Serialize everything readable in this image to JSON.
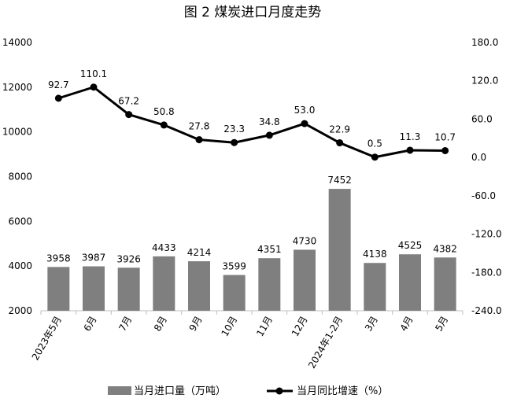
{
  "chart_data": {
    "type": "bar+line",
    "title": "图 2  煤炭进口月度走势",
    "categories": [
      "2023年5月",
      "6月",
      "7月",
      "8月",
      "9月",
      "10月",
      "11月",
      "12月",
      "2024年1-2月",
      "3月",
      "4月",
      "5月"
    ],
    "series": [
      {
        "name": "当月进口量（万吨）",
        "type": "bar",
        "axis": "left",
        "color": "#7f7f7f",
        "values": [
          3958,
          3987,
          3926,
          4433,
          4214,
          3599,
          4351,
          4730,
          7452,
          4138,
          4525,
          4382
        ]
      },
      {
        "name": "当月同比增速（%）",
        "type": "line",
        "axis": "right",
        "color": "#000000",
        "values": [
          92.7,
          110.1,
          67.2,
          50.8,
          27.8,
          23.3,
          34.8,
          53.0,
          22.9,
          0.5,
          11.3,
          10.7
        ]
      }
    ],
    "y_left": {
      "min": 2000,
      "max": 14000,
      "ticks": [
        "2000",
        "4000",
        "6000",
        "8000",
        "10000",
        "12000",
        "14000"
      ]
    },
    "y_right": {
      "min": -240,
      "max": 180,
      "ticks": [
        "-240.0",
        "-180.0",
        "-120.0",
        "-60.0",
        "0.0",
        "60.0",
        "120.0",
        "180.0"
      ]
    },
    "bar_labels": [
      "3958",
      "3987",
      "3926",
      "4433",
      "4214",
      "3599",
      "4351",
      "4730",
      "7452",
      "4138",
      "4525",
      "4382"
    ],
    "line_labels": [
      "92.7",
      "110.1",
      "67.2",
      "50.8",
      "27.8",
      "23.3",
      "34.8",
      "53.0",
      "22.9",
      "0.5",
      "11.3",
      "10.7"
    ],
    "legend_position": "bottom",
    "grid": false
  }
}
